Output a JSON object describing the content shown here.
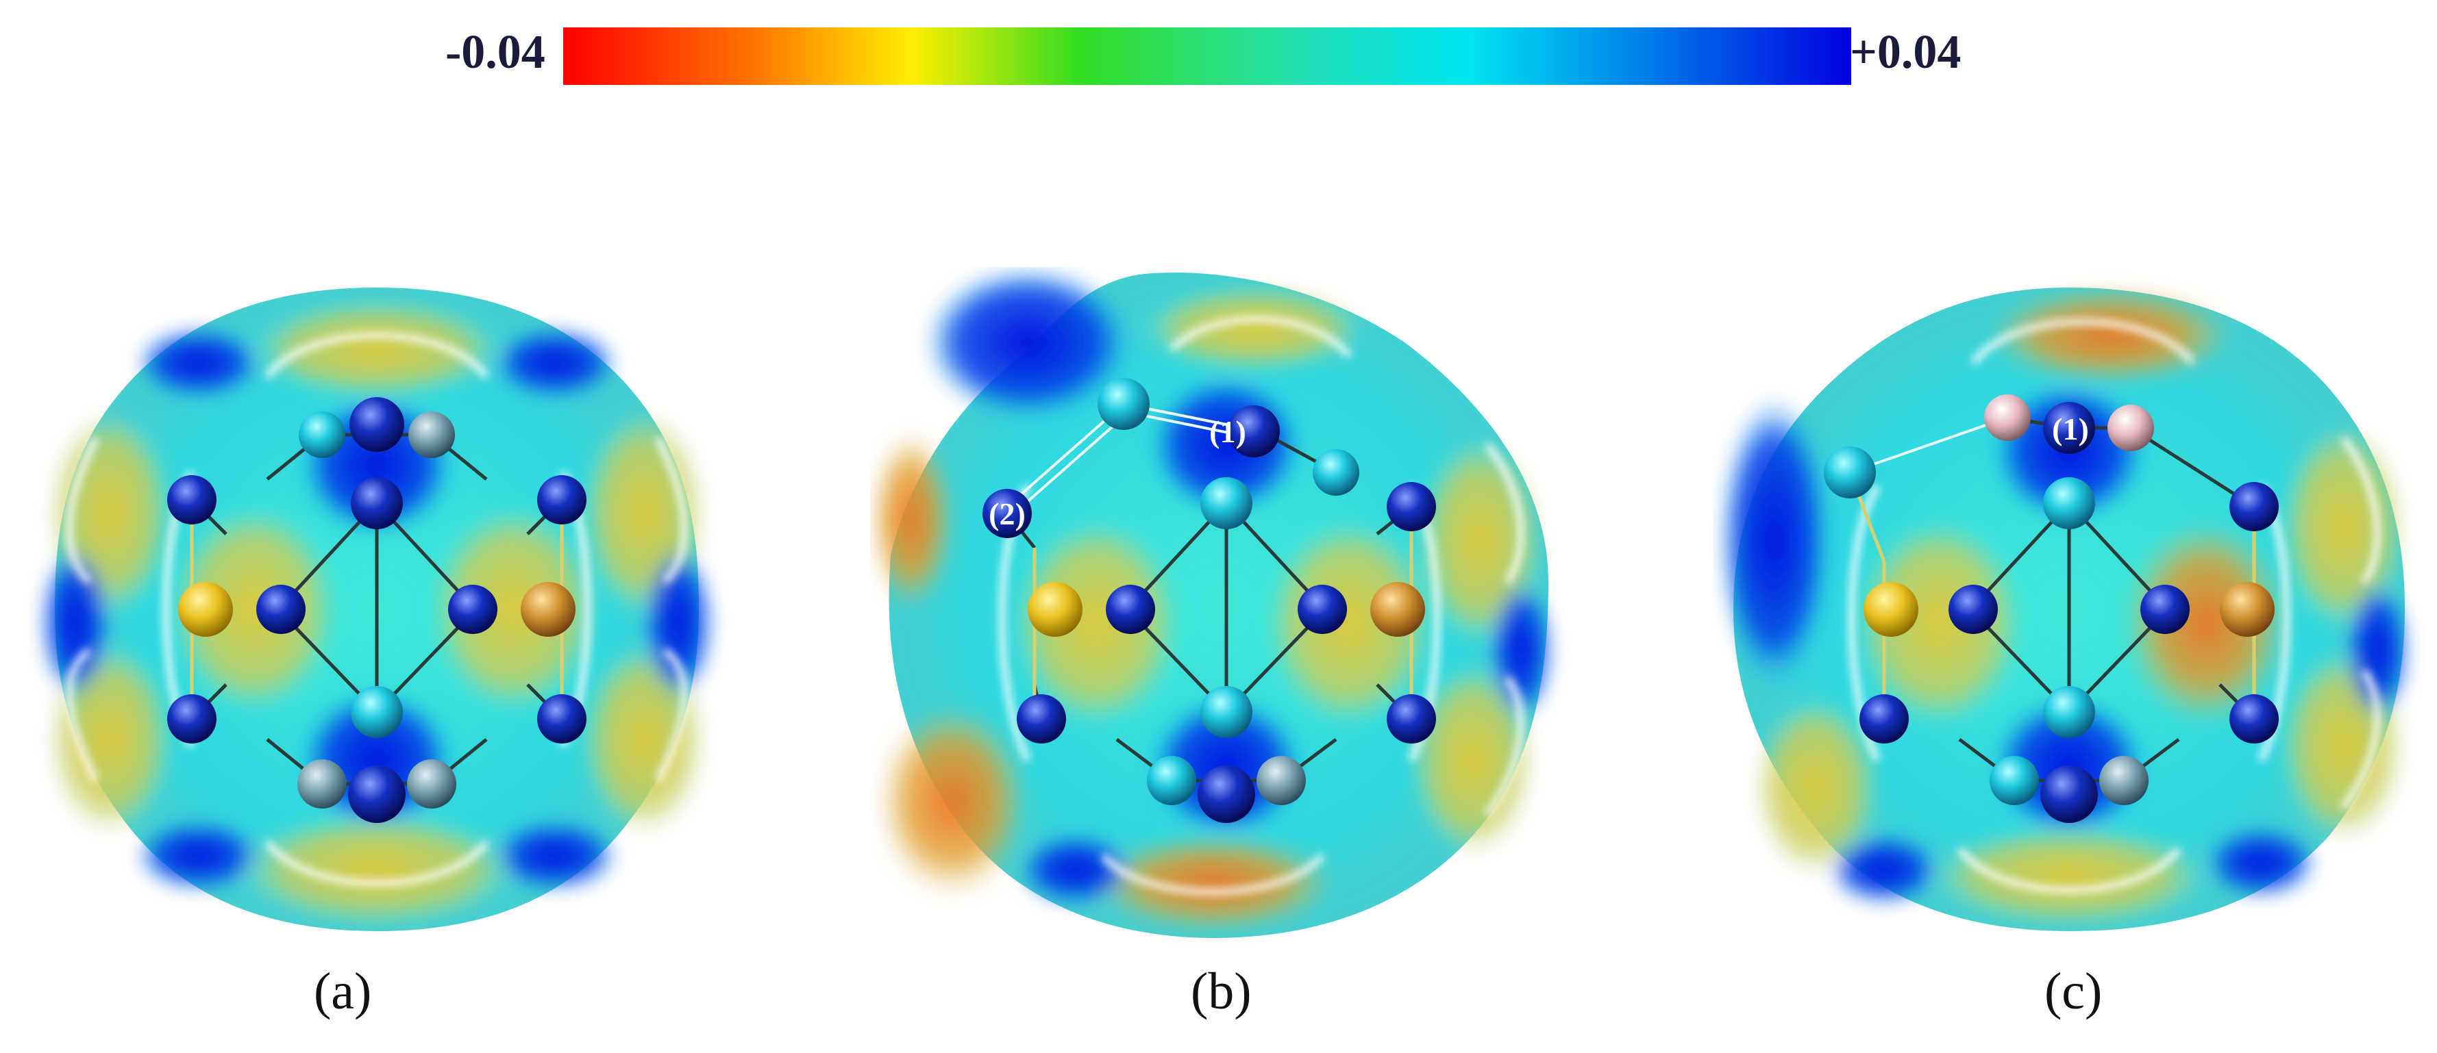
{
  "colorbar": {
    "min_label": "-0.04",
    "max_label": "+0.04",
    "min_value": -0.04,
    "max_value": 0.04,
    "colors": [
      "#ff0000",
      "#ff7700",
      "#ffee00",
      "#33dd22",
      "#22e0b8",
      "#00e6f0",
      "#0077e8",
      "#0000e0"
    ]
  },
  "panels": [
    {
      "caption": "(a)",
      "site_labels": []
    },
    {
      "caption": "(b)",
      "site_labels": [
        "(1)",
        "(2)"
      ]
    },
    {
      "caption": "(c)",
      "site_labels": [
        "(1)"
      ]
    }
  ]
}
